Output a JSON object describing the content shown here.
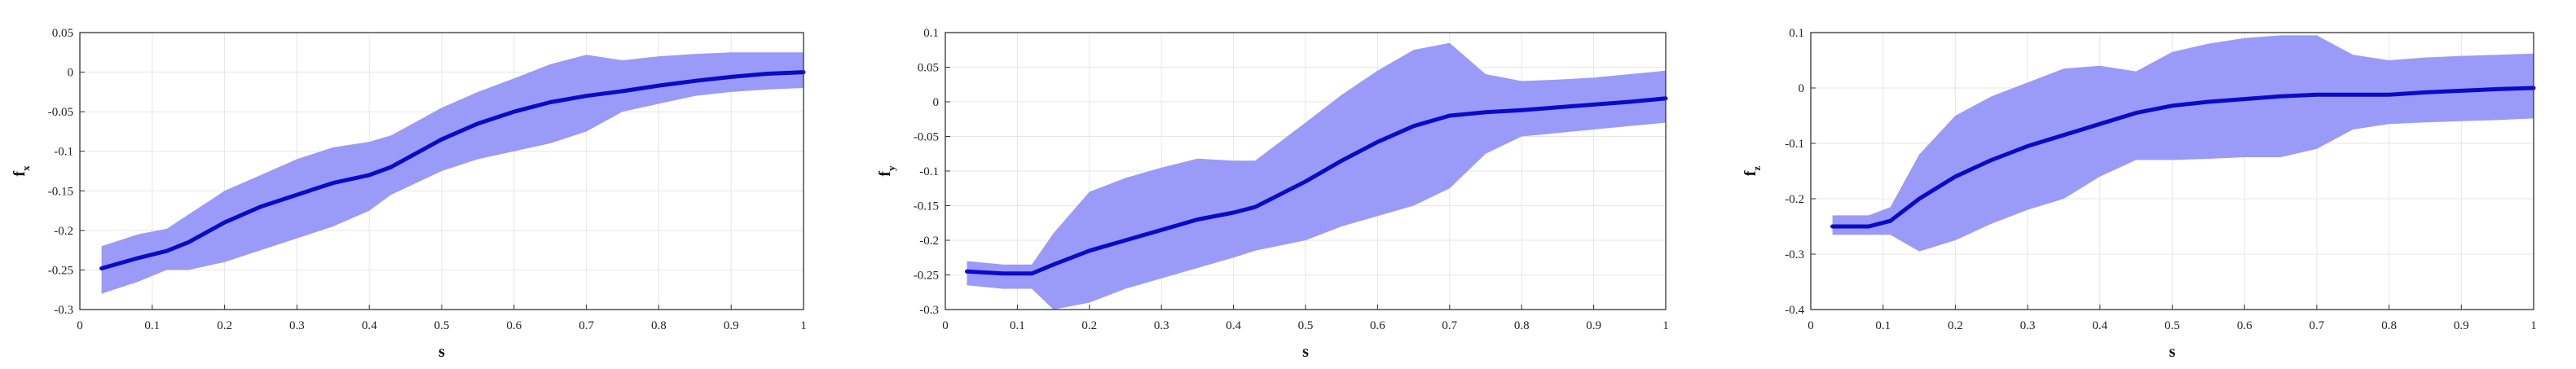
{
  "figure": {
    "colors": {
      "band": "#9a9af8",
      "mean": "#0a0ac8",
      "grid": "#e6e6e6",
      "axis": "#333333"
    }
  },
  "chart_data": [
    {
      "type": "area",
      "xlabel": "s",
      "ylabel": "f",
      "ylabel_sub": "x",
      "xlim": [
        0,
        1
      ],
      "ylim": [
        -0.3,
        0.05
      ],
      "xticks": [
        0,
        0.1,
        0.2,
        0.3,
        0.4,
        0.5,
        0.6,
        0.7,
        0.8,
        0.9,
        1
      ],
      "yticks": [
        -0.3,
        -0.25,
        -0.2,
        -0.15,
        -0.1,
        -0.05,
        0,
        0.05
      ],
      "grid": true,
      "x": [
        0.03,
        0.08,
        0.12,
        0.15,
        0.2,
        0.25,
        0.3,
        0.35,
        0.4,
        0.43,
        0.5,
        0.55,
        0.6,
        0.65,
        0.7,
        0.75,
        0.8,
        0.85,
        0.9,
        0.95,
        1.0
      ],
      "series": [
        {
          "values": [
            -0.248,
            -0.235,
            -0.226,
            -0.215,
            -0.19,
            -0.17,
            -0.155,
            -0.14,
            -0.13,
            -0.12,
            -0.085,
            -0.065,
            -0.05,
            -0.038,
            -0.03,
            -0.024,
            -0.017,
            -0.011,
            -0.006,
            -0.002,
            0.0
          ]
        }
      ],
      "band": {
        "upper": [
          -0.22,
          -0.205,
          -0.198,
          -0.18,
          -0.15,
          -0.13,
          -0.11,
          -0.095,
          -0.088,
          -0.08,
          -0.045,
          -0.025,
          -0.008,
          0.01,
          0.022,
          0.015,
          0.02,
          0.023,
          0.025,
          0.025,
          0.025
        ],
        "lower": [
          -0.28,
          -0.265,
          -0.25,
          -0.25,
          -0.24,
          -0.225,
          -0.21,
          -0.195,
          -0.175,
          -0.155,
          -0.125,
          -0.11,
          -0.1,
          -0.09,
          -0.075,
          -0.05,
          -0.04,
          -0.03,
          -0.025,
          -0.022,
          -0.02
        ]
      }
    },
    {
      "type": "area",
      "xlabel": "s",
      "ylabel": "f",
      "ylabel_sub": "y",
      "xlim": [
        0,
        1
      ],
      "ylim": [
        -0.3,
        0.1
      ],
      "xticks": [
        0,
        0.1,
        0.2,
        0.3,
        0.4,
        0.5,
        0.6,
        0.7,
        0.8,
        0.9,
        1
      ],
      "yticks": [
        -0.3,
        -0.25,
        -0.2,
        -0.15,
        -0.1,
        -0.05,
        0,
        0.05,
        0.1
      ],
      "grid": true,
      "x": [
        0.03,
        0.08,
        0.12,
        0.15,
        0.2,
        0.25,
        0.3,
        0.35,
        0.4,
        0.43,
        0.5,
        0.55,
        0.6,
        0.65,
        0.7,
        0.75,
        0.8,
        0.85,
        0.9,
        0.95,
        1.0
      ],
      "series": [
        {
          "values": [
            -0.245,
            -0.248,
            -0.248,
            -0.235,
            -0.215,
            -0.2,
            -0.185,
            -0.17,
            -0.16,
            -0.152,
            -0.115,
            -0.085,
            -0.058,
            -0.035,
            -0.02,
            -0.015,
            -0.012,
            -0.008,
            -0.004,
            0.0,
            0.005
          ]
        }
      ],
      "band": {
        "upper": [
          -0.23,
          -0.235,
          -0.235,
          -0.19,
          -0.13,
          -0.11,
          -0.095,
          -0.082,
          -0.085,
          -0.085,
          -0.03,
          0.01,
          0.045,
          0.075,
          0.085,
          0.04,
          0.03,
          0.032,
          0.035,
          0.04,
          0.045
        ],
        "lower": [
          -0.265,
          -0.27,
          -0.27,
          -0.3,
          -0.29,
          -0.27,
          -0.255,
          -0.24,
          -0.225,
          -0.215,
          -0.2,
          -0.18,
          -0.165,
          -0.15,
          -0.125,
          -0.075,
          -0.05,
          -0.045,
          -0.04,
          -0.035,
          -0.03
        ]
      }
    },
    {
      "type": "area",
      "xlabel": "s",
      "ylabel": "f",
      "ylabel_sub": "z",
      "xlim": [
        0,
        1
      ],
      "ylim": [
        -0.4,
        0.1
      ],
      "xticks": [
        0,
        0.1,
        0.2,
        0.3,
        0.4,
        0.5,
        0.6,
        0.7,
        0.8,
        0.9,
        1
      ],
      "yticks": [
        -0.4,
        -0.3,
        -0.2,
        -0.1,
        0,
        0.1
      ],
      "grid": true,
      "x": [
        0.03,
        0.08,
        0.11,
        0.15,
        0.2,
        0.25,
        0.3,
        0.35,
        0.4,
        0.45,
        0.5,
        0.55,
        0.6,
        0.65,
        0.7,
        0.75,
        0.8,
        0.85,
        0.9,
        0.95,
        1.0
      ],
      "series": [
        {
          "values": [
            -0.25,
            -0.25,
            -0.24,
            -0.2,
            -0.16,
            -0.13,
            -0.105,
            -0.085,
            -0.065,
            -0.045,
            -0.032,
            -0.025,
            -0.02,
            -0.015,
            -0.012,
            -0.012,
            -0.012,
            -0.008,
            -0.005,
            -0.002,
            0.0
          ]
        }
      ],
      "band": {
        "upper": [
          -0.23,
          -0.23,
          -0.215,
          -0.12,
          -0.05,
          -0.015,
          0.01,
          0.035,
          0.04,
          0.03,
          0.065,
          0.08,
          0.09,
          0.095,
          0.095,
          0.06,
          0.05,
          0.055,
          0.058,
          0.06,
          0.062
        ],
        "lower": [
          -0.265,
          -0.265,
          -0.265,
          -0.295,
          -0.275,
          -0.245,
          -0.22,
          -0.2,
          -0.16,
          -0.13,
          -0.13,
          -0.128,
          -0.125,
          -0.125,
          -0.11,
          -0.075,
          -0.065,
          -0.062,
          -0.06,
          -0.058,
          -0.055
        ]
      }
    }
  ]
}
